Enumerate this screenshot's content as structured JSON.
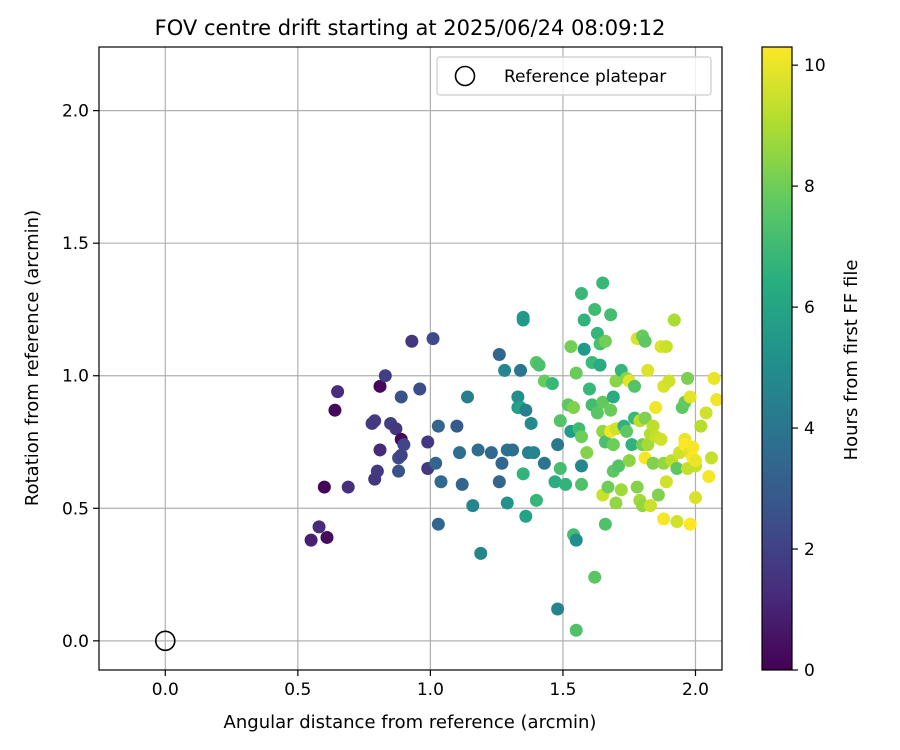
{
  "chart_data": {
    "type": "scatter",
    "title": "FOV centre drift starting at 2025/06/24 08:09:12",
    "xlabel": "Angular distance from reference (arcmin)",
    "ylabel": "Rotation from reference (arcmin)",
    "xlim": [
      -0.25,
      2.1
    ],
    "ylim": [
      -0.11,
      2.24
    ],
    "x_ticks": [
      0.0,
      0.5,
      1.0,
      1.5,
      2.0
    ],
    "x_tick_labels": [
      "0.0",
      "0.5",
      "1.0",
      "1.5",
      "2.0"
    ],
    "y_ticks": [
      0.0,
      0.5,
      1.0,
      1.5,
      2.0
    ],
    "y_tick_labels": [
      "0.0",
      "0.5",
      "1.0",
      "1.5",
      "2.0"
    ],
    "grid": true,
    "colormap": "viridis",
    "colorbar": {
      "label": "Hours from first FF file",
      "range": [
        0,
        10.3
      ],
      "ticks": [
        0,
        2,
        4,
        6,
        8,
        10
      ],
      "tick_labels": [
        "0",
        "2",
        "4",
        "6",
        "8",
        "10"
      ]
    },
    "legend": {
      "position": "top-right",
      "entries": [
        {
          "label": "Reference platepar",
          "marker": "hollow-circle"
        }
      ]
    },
    "reference_point": {
      "x": 0.0,
      "y": 0.0
    },
    "points": [
      {
        "x": 0.55,
        "y": 0.38,
        "h": 0.9
      },
      {
        "x": 0.58,
        "y": 0.43,
        "h": 1.3
      },
      {
        "x": 0.6,
        "y": 0.58,
        "h": 0.1
      },
      {
        "x": 0.61,
        "y": 0.39,
        "h": 0.3
      },
      {
        "x": 0.64,
        "y": 0.87,
        "h": 0.2
      },
      {
        "x": 0.65,
        "y": 0.94,
        "h": 1.3
      },
      {
        "x": 0.69,
        "y": 0.58,
        "h": 1.4
      },
      {
        "x": 0.78,
        "y": 0.82,
        "h": 1.8
      },
      {
        "x": 0.79,
        "y": 0.83,
        "h": 1.7
      },
      {
        "x": 0.79,
        "y": 0.61,
        "h": 1.6
      },
      {
        "x": 0.8,
        "y": 0.64,
        "h": 1.7
      },
      {
        "x": 0.81,
        "y": 0.96,
        "h": 0.2
      },
      {
        "x": 0.81,
        "y": 0.72,
        "h": 1.2
      },
      {
        "x": 0.83,
        "y": 1.0,
        "h": 1.9
      },
      {
        "x": 0.85,
        "y": 0.82,
        "h": 1.9
      },
      {
        "x": 0.87,
        "y": 0.8,
        "h": 1.6
      },
      {
        "x": 0.88,
        "y": 0.64,
        "h": 2.6
      },
      {
        "x": 0.88,
        "y": 0.69,
        "h": 2.4
      },
      {
        "x": 0.89,
        "y": 0.92,
        "h": 2.6
      },
      {
        "x": 0.89,
        "y": 0.76,
        "h": 0.2
      },
      {
        "x": 0.89,
        "y": 0.7,
        "h": 2.1
      },
      {
        "x": 0.9,
        "y": 0.74,
        "h": 2.2
      },
      {
        "x": 0.93,
        "y": 1.13,
        "h": 1.6
      },
      {
        "x": 0.96,
        "y": 0.95,
        "h": 2.4
      },
      {
        "x": 0.99,
        "y": 0.75,
        "h": 1.7
      },
      {
        "x": 0.99,
        "y": 0.65,
        "h": 1.8
      },
      {
        "x": 1.01,
        "y": 1.14,
        "h": 2.3
      },
      {
        "x": 1.02,
        "y": 0.67,
        "h": 3.3
      },
      {
        "x": 1.03,
        "y": 0.44,
        "h": 3.4
      },
      {
        "x": 1.03,
        "y": 0.81,
        "h": 3.3
      },
      {
        "x": 1.04,
        "y": 0.6,
        "h": 3.5
      },
      {
        "x": 1.1,
        "y": 0.81,
        "h": 2.9
      },
      {
        "x": 1.11,
        "y": 0.71,
        "h": 3.7
      },
      {
        "x": 1.12,
        "y": 0.59,
        "h": 3.3
      },
      {
        "x": 1.14,
        "y": 0.92,
        "h": 4.4
      },
      {
        "x": 1.16,
        "y": 0.51,
        "h": 4.7
      },
      {
        "x": 1.18,
        "y": 0.72,
        "h": 3.6
      },
      {
        "x": 1.19,
        "y": 0.33,
        "h": 4.7
      },
      {
        "x": 1.23,
        "y": 0.71,
        "h": 3.5
      },
      {
        "x": 1.26,
        "y": 0.6,
        "h": 3.3
      },
      {
        "x": 1.26,
        "y": 1.08,
        "h": 3.4
      },
      {
        "x": 1.27,
        "y": 0.67,
        "h": 3.4
      },
      {
        "x": 1.28,
        "y": 1.02,
        "h": 4.8
      },
      {
        "x": 1.29,
        "y": 0.52,
        "h": 5.3
      },
      {
        "x": 1.29,
        "y": 0.72,
        "h": 3.9
      },
      {
        "x": 1.31,
        "y": 0.72,
        "h": 3.8
      },
      {
        "x": 1.33,
        "y": 0.88,
        "h": 5.6
      },
      {
        "x": 1.33,
        "y": 0.92,
        "h": 5.1
      },
      {
        "x": 1.34,
        "y": 1.02,
        "h": 4.0
      },
      {
        "x": 1.34,
        "y": 0.88,
        "h": 5.9
      },
      {
        "x": 1.35,
        "y": 1.22,
        "h": 5.6
      },
      {
        "x": 1.35,
        "y": 1.21,
        "h": 5.5
      },
      {
        "x": 1.35,
        "y": 0.63,
        "h": 6.7
      },
      {
        "x": 1.36,
        "y": 0.47,
        "h": 5.9
      },
      {
        "x": 1.36,
        "y": 0.87,
        "h": 4.5
      },
      {
        "x": 1.37,
        "y": 0.71,
        "h": 4.4
      },
      {
        "x": 1.38,
        "y": 0.82,
        "h": 4.9
      },
      {
        "x": 1.39,
        "y": 0.71,
        "h": 4.7
      },
      {
        "x": 1.4,
        "y": 0.53,
        "h": 6.8
      },
      {
        "x": 1.4,
        "y": 1.05,
        "h": 7.6
      },
      {
        "x": 1.41,
        "y": 1.04,
        "h": 7.3
      },
      {
        "x": 1.43,
        "y": 0.98,
        "h": 7.9
      },
      {
        "x": 1.43,
        "y": 0.67,
        "h": 4.0
      },
      {
        "x": 1.46,
        "y": 0.97,
        "h": 6.9
      },
      {
        "x": 1.47,
        "y": 0.6,
        "h": 6.3
      },
      {
        "x": 1.48,
        "y": 0.74,
        "h": 4.2
      },
      {
        "x": 1.48,
        "y": 0.12,
        "h": 4.6
      },
      {
        "x": 1.49,
        "y": 0.83,
        "h": 7.5
      },
      {
        "x": 1.49,
        "y": 0.65,
        "h": 7.2
      },
      {
        "x": 1.51,
        "y": 0.59,
        "h": 6.7
      },
      {
        "x": 1.52,
        "y": 0.89,
        "h": 7.7
      },
      {
        "x": 1.53,
        "y": 1.11,
        "h": 8.1
      },
      {
        "x": 1.53,
        "y": 0.79,
        "h": 5.7
      },
      {
        "x": 1.54,
        "y": 0.4,
        "h": 7.2
      },
      {
        "x": 1.54,
        "y": 0.88,
        "h": 8.3
      },
      {
        "x": 1.55,
        "y": 0.04,
        "h": 7.4
      },
      {
        "x": 1.55,
        "y": 1.01,
        "h": 7.9
      },
      {
        "x": 1.55,
        "y": 0.38,
        "h": 5.0
      },
      {
        "x": 1.56,
        "y": 0.8,
        "h": 7.1
      },
      {
        "x": 1.57,
        "y": 1.31,
        "h": 6.9
      },
      {
        "x": 1.57,
        "y": 0.66,
        "h": 4.8
      },
      {
        "x": 1.57,
        "y": 0.59,
        "h": 7.4
      },
      {
        "x": 1.57,
        "y": 0.77,
        "h": 8.0
      },
      {
        "x": 1.58,
        "y": 1.21,
        "h": 6.7
      },
      {
        "x": 1.58,
        "y": 1.1,
        "h": 5.6
      },
      {
        "x": 1.59,
        "y": 0.71,
        "h": 8.4
      },
      {
        "x": 1.6,
        "y": 0.95,
        "h": 6.9
      },
      {
        "x": 1.61,
        "y": 0.89,
        "h": 7.2
      },
      {
        "x": 1.61,
        "y": 1.05,
        "h": 7.0
      },
      {
        "x": 1.62,
        "y": 0.24,
        "h": 7.6
      },
      {
        "x": 1.62,
        "y": 1.25,
        "h": 7.1
      },
      {
        "x": 1.63,
        "y": 1.16,
        "h": 6.8
      },
      {
        "x": 1.63,
        "y": 0.86,
        "h": 7.6
      },
      {
        "x": 1.64,
        "y": 1.04,
        "h": 6.3
      },
      {
        "x": 1.64,
        "y": 1.12,
        "h": 7.3
      },
      {
        "x": 1.65,
        "y": 0.9,
        "h": 7.8
      },
      {
        "x": 1.65,
        "y": 1.35,
        "h": 6.9
      },
      {
        "x": 1.65,
        "y": 0.79,
        "h": 8.6
      },
      {
        "x": 1.65,
        "y": 0.55,
        "h": 9.5
      },
      {
        "x": 1.66,
        "y": 0.44,
        "h": 7.4
      },
      {
        "x": 1.66,
        "y": 1.13,
        "h": 8.1
      },
      {
        "x": 1.66,
        "y": 0.75,
        "h": 7.3
      },
      {
        "x": 1.67,
        "y": 0.58,
        "h": 8.0
      },
      {
        "x": 1.68,
        "y": 1.23,
        "h": 7.2
      },
      {
        "x": 1.68,
        "y": 0.87,
        "h": 7.9
      },
      {
        "x": 1.68,
        "y": 0.79,
        "h": 10.1
      },
      {
        "x": 1.69,
        "y": 0.92,
        "h": 6.3
      },
      {
        "x": 1.69,
        "y": 0.74,
        "h": 8.0
      },
      {
        "x": 1.69,
        "y": 0.64,
        "h": 7.7
      },
      {
        "x": 1.7,
        "y": 0.8,
        "h": 9.6
      },
      {
        "x": 1.7,
        "y": 0.52,
        "h": 8.6
      },
      {
        "x": 1.7,
        "y": 0.98,
        "h": 8.5
      },
      {
        "x": 1.71,
        "y": 0.66,
        "h": 7.5
      },
      {
        "x": 1.72,
        "y": 1.02,
        "h": 6.8
      },
      {
        "x": 1.72,
        "y": 0.57,
        "h": 8.8
      },
      {
        "x": 1.73,
        "y": 0.81,
        "h": 6.6
      },
      {
        "x": 1.74,
        "y": 0.99,
        "h": 8.5
      },
      {
        "x": 1.74,
        "y": 0.79,
        "h": 7.7
      },
      {
        "x": 1.75,
        "y": 0.98,
        "h": 9.9
      },
      {
        "x": 1.75,
        "y": 0.68,
        "h": 8.5
      },
      {
        "x": 1.76,
        "y": 0.74,
        "h": 6.6
      },
      {
        "x": 1.77,
        "y": 0.84,
        "h": 6.9
      },
      {
        "x": 1.77,
        "y": 0.96,
        "h": 7.5
      },
      {
        "x": 1.78,
        "y": 0.58,
        "h": 8.4
      },
      {
        "x": 1.78,
        "y": 1.14,
        "h": 9.7
      },
      {
        "x": 1.79,
        "y": 0.83,
        "h": 9.3
      },
      {
        "x": 1.79,
        "y": 0.53,
        "h": 8.9
      },
      {
        "x": 1.8,
        "y": 1.15,
        "h": 7.9
      },
      {
        "x": 1.8,
        "y": 0.74,
        "h": 8.1
      },
      {
        "x": 1.8,
        "y": 0.51,
        "h": 8.6
      },
      {
        "x": 1.81,
        "y": 1.13,
        "h": 7.7
      },
      {
        "x": 1.81,
        "y": 0.69,
        "h": 10.2
      },
      {
        "x": 1.81,
        "y": 0.84,
        "h": 8.3
      },
      {
        "x": 1.82,
        "y": 1.02,
        "h": 9.8
      },
      {
        "x": 1.82,
        "y": 0.74,
        "h": 8.9
      },
      {
        "x": 1.83,
        "y": 0.78,
        "h": 9.1
      },
      {
        "x": 1.83,
        "y": 0.51,
        "h": 9.5
      },
      {
        "x": 1.84,
        "y": 0.81,
        "h": 9.3
      },
      {
        "x": 1.84,
        "y": 0.67,
        "h": 8.3
      },
      {
        "x": 1.85,
        "y": 0.88,
        "h": 10.1
      },
      {
        "x": 1.85,
        "y": 0.77,
        "h": 9.4
      },
      {
        "x": 1.86,
        "y": 0.55,
        "h": 8.3
      },
      {
        "x": 1.87,
        "y": 1.11,
        "h": 9.8
      },
      {
        "x": 1.87,
        "y": 0.76,
        "h": 9.6
      },
      {
        "x": 1.88,
        "y": 0.67,
        "h": 8.6
      },
      {
        "x": 1.88,
        "y": 0.46,
        "h": 10.2
      },
      {
        "x": 1.88,
        "y": 0.96,
        "h": 9.7
      },
      {
        "x": 1.89,
        "y": 1.11,
        "h": 9.5
      },
      {
        "x": 1.89,
        "y": 0.6,
        "h": 9.6
      },
      {
        "x": 1.9,
        "y": 0.98,
        "h": 9.6
      },
      {
        "x": 1.91,
        "y": 0.68,
        "h": 9.3
      },
      {
        "x": 1.92,
        "y": 1.21,
        "h": 9.0
      },
      {
        "x": 1.93,
        "y": 0.65,
        "h": 7.7
      },
      {
        "x": 1.93,
        "y": 0.45,
        "h": 9.6
      },
      {
        "x": 1.94,
        "y": 0.71,
        "h": 9.6
      },
      {
        "x": 1.95,
        "y": 0.88,
        "h": 7.7
      },
      {
        "x": 1.96,
        "y": 0.76,
        "h": 10.0
      },
      {
        "x": 1.96,
        "y": 0.9,
        "h": 7.8
      },
      {
        "x": 1.96,
        "y": 0.74,
        "h": 10.3
      },
      {
        "x": 1.97,
        "y": 0.65,
        "h": 9.4
      },
      {
        "x": 1.97,
        "y": 0.99,
        "h": 8.2
      },
      {
        "x": 1.98,
        "y": 0.92,
        "h": 9.9
      },
      {
        "x": 1.98,
        "y": 0.44,
        "h": 10.3
      },
      {
        "x": 1.98,
        "y": 0.71,
        "h": 9.8
      },
      {
        "x": 1.99,
        "y": 0.73,
        "h": 10.2
      },
      {
        "x": 1.99,
        "y": 0.69,
        "h": 10.3
      },
      {
        "x": 2.0,
        "y": 0.66,
        "h": 9.4
      },
      {
        "x": 2.0,
        "y": 0.54,
        "h": 9.7
      },
      {
        "x": 2.0,
        "y": 0.68,
        "h": 10.0
      },
      {
        "x": 2.02,
        "y": 0.81,
        "h": 9.2
      },
      {
        "x": 2.04,
        "y": 0.86,
        "h": 9.6
      },
      {
        "x": 2.05,
        "y": 0.62,
        "h": 10.2
      },
      {
        "x": 2.06,
        "y": 0.69,
        "h": 9.4
      },
      {
        "x": 2.07,
        "y": 0.99,
        "h": 10.0
      },
      {
        "x": 2.08,
        "y": 0.91,
        "h": 10.1
      }
    ]
  }
}
